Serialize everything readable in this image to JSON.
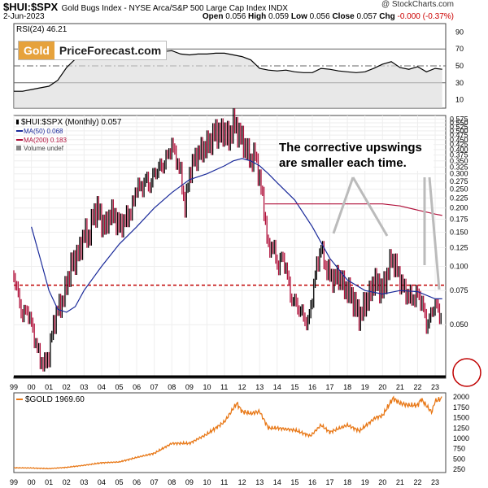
{
  "header": {
    "symbol": "$HUI:$SPX",
    "description": "Gold Bugs Index - NYSE Arca/S&P 500 Large Cap Index INDX",
    "date": "2-Jun-2023",
    "open_label": "Open",
    "open": "0.056",
    "high_label": "High",
    "high": "0.059",
    "low_label": "Low",
    "low": "0.056",
    "close_label": "Close",
    "close": "0.057",
    "chg_label": "Chg",
    "chg": "-0.000 (-0.37%)",
    "copyright": "@ StockCharts.com"
  },
  "logo": {
    "gold": "Gold",
    "rest": "PriceForecast.com"
  },
  "annotation": "The corrective upswings are smaller each time.",
  "colors": {
    "price": "#000000",
    "ma50": "#1a2a9a",
    "ma200": "#b0103a",
    "gold": "#e87817",
    "dashed": "#c00000",
    "callout_circle": "#c00000"
  },
  "chart_data": [
    {
      "type": "line",
      "panel": "rsi",
      "legend": "RSI(24) 46.21",
      "ylim": [
        0,
        100
      ],
      "yticks": [
        10,
        30,
        50,
        70,
        90
      ],
      "levels": [
        30,
        50,
        70
      ],
      "series": [
        {
          "name": "RSI(24)",
          "x": [
            1999.0,
            1999.5,
            2000.0,
            2000.5,
            2001.0,
            2001.5,
            2002.0,
            2002.5,
            2003.0,
            2003.5,
            2004.0,
            2004.5,
            2005.0,
            2005.5,
            2006.0,
            2006.5,
            2007.0,
            2007.5,
            2008.0,
            2008.5,
            2009.0,
            2009.5,
            2010.0,
            2010.5,
            2011.0,
            2011.5,
            2012.0,
            2012.5,
            2013.0,
            2013.5,
            2014.0,
            2014.5,
            2015.0,
            2015.5,
            2016.0,
            2016.5,
            2017.0,
            2017.5,
            2018.0,
            2018.5,
            2019.0,
            2019.5,
            2020.0,
            2020.5,
            2021.0,
            2021.5,
            2022.0,
            2022.5,
            2023.0,
            2023.4
          ],
          "values": [
            20,
            20,
            22,
            24,
            26,
            33,
            48,
            58,
            62,
            60,
            63,
            60,
            61,
            62,
            66,
            64,
            66,
            67,
            68,
            64,
            63,
            64,
            64,
            65,
            65,
            63,
            61,
            57,
            47,
            45,
            44,
            45,
            43,
            42,
            42,
            47,
            46,
            44,
            43,
            42,
            43,
            47,
            52,
            55,
            48,
            46,
            49,
            43,
            47,
            46
          ]
        }
      ]
    },
    {
      "type": "line",
      "panel": "ratio",
      "legend": [
        "$HUI:$SPX (Monthly) 0.057",
        "MA(50) 0.068",
        "MA(200) 0.183",
        "Volume undef"
      ],
      "yscale": "log",
      "yticks": [
        "0.050",
        "0.075",
        "0.100",
        "0.125",
        "0.150",
        "0.175",
        "0.200",
        "0.225",
        "0.250",
        "0.275",
        "0.300",
        "0.325",
        "0.350",
        "0.375",
        "0.400",
        "0.425",
        "0.450",
        "0.475",
        "0.500",
        "0.525",
        "0.550",
        "0.575"
      ],
      "xticks": [
        "99",
        "00",
        "01",
        "02",
        "03",
        "04",
        "05",
        "06",
        "07",
        "08",
        "09",
        "10",
        "11",
        "12",
        "13",
        "14",
        "15",
        "16",
        "17",
        "18",
        "19",
        "20",
        "21",
        "22",
        "23"
      ],
      "reference_line": 0.08,
      "series": [
        {
          "name": "$HUI:$SPX",
          "x": [
            1999.0,
            1999.25,
            1999.5,
            1999.75,
            2000.0,
            2000.25,
            2000.5,
            2000.75,
            2001.0,
            2001.25,
            2001.5,
            2001.75,
            2002.0,
            2002.25,
            2002.5,
            2002.75,
            2003.0,
            2003.25,
            2003.5,
            2003.75,
            2004.0,
            2004.25,
            2004.5,
            2004.75,
            2005.0,
            2005.25,
            2005.5,
            2005.75,
            2006.0,
            2006.25,
            2006.5,
            2006.75,
            2007.0,
            2007.25,
            2007.5,
            2007.75,
            2008.0,
            2008.25,
            2008.5,
            2008.75,
            2009.0,
            2009.25,
            2009.5,
            2009.75,
            2010.0,
            2010.25,
            2010.5,
            2010.75,
            2011.0,
            2011.25,
            2011.5,
            2011.75,
            2012.0,
            2012.25,
            2012.5,
            2012.75,
            2013.0,
            2013.25,
            2013.5,
            2013.75,
            2014.0,
            2014.25,
            2014.5,
            2014.75,
            2015.0,
            2015.25,
            2015.5,
            2015.75,
            2016.0,
            2016.25,
            2016.5,
            2016.75,
            2017.0,
            2017.25,
            2017.5,
            2017.75,
            2018.0,
            2018.25,
            2018.5,
            2018.75,
            2019.0,
            2019.25,
            2019.5,
            2019.75,
            2020.0,
            2020.25,
            2020.5,
            2020.75,
            2021.0,
            2021.25,
            2021.5,
            2021.75,
            2022.0,
            2022.25,
            2022.5,
            2022.75,
            2023.0,
            2023.25,
            2023.4
          ],
          "values": [
            0.09,
            0.07,
            0.055,
            0.06,
            0.05,
            0.04,
            0.033,
            0.031,
            0.035,
            0.05,
            0.06,
            0.065,
            0.08,
            0.1,
            0.11,
            0.12,
            0.15,
            0.14,
            0.18,
            0.2,
            0.17,
            0.16,
            0.19,
            0.18,
            0.16,
            0.17,
            0.18,
            0.2,
            0.26,
            0.25,
            0.28,
            0.26,
            0.3,
            0.32,
            0.33,
            0.37,
            0.42,
            0.36,
            0.3,
            0.2,
            0.3,
            0.35,
            0.38,
            0.4,
            0.42,
            0.45,
            0.5,
            0.48,
            0.5,
            0.45,
            0.55,
            0.5,
            0.45,
            0.4,
            0.35,
            0.38,
            0.28,
            0.2,
            0.12,
            0.13,
            0.1,
            0.11,
            0.1,
            0.07,
            0.065,
            0.06,
            0.055,
            0.05,
            0.07,
            0.1,
            0.125,
            0.1,
            0.09,
            0.085,
            0.09,
            0.08,
            0.075,
            0.07,
            0.06,
            0.055,
            0.065,
            0.07,
            0.085,
            0.08,
            0.075,
            0.09,
            0.11,
            0.1,
            0.085,
            0.075,
            0.07,
            0.068,
            0.072,
            0.065,
            0.05,
            0.055,
            0.065,
            0.055,
            0.057
          ]
        },
        {
          "name": "MA(50)",
          "x": [
            2000.0,
            2000.5,
            2001.0,
            2001.5,
            2002.0,
            2002.5,
            2003.0,
            2004.0,
            2005.0,
            2006.0,
            2007.0,
            2008.0,
            2009.0,
            2010.0,
            2011.0,
            2011.5,
            2012.0,
            2012.5,
            2013.0,
            2013.5,
            2014.0,
            2015.0,
            2016.0,
            2017.0,
            2018.0,
            2019.0,
            2020.0,
            2021.0,
            2022.0,
            2023.0,
            2023.4
          ],
          "values": [
            0.16,
            0.11,
            0.075,
            0.06,
            0.058,
            0.062,
            0.075,
            0.1,
            0.13,
            0.16,
            0.2,
            0.24,
            0.28,
            0.3,
            0.33,
            0.35,
            0.36,
            0.35,
            0.33,
            0.3,
            0.27,
            0.22,
            0.16,
            0.11,
            0.085,
            0.075,
            0.072,
            0.075,
            0.074,
            0.068,
            0.068
          ]
        },
        {
          "name": "MA(200)",
          "x": [
            2013.3,
            2014.0,
            2015.0,
            2016.0,
            2017.0,
            2018.0,
            2019.0,
            2020.0,
            2021.0,
            2022.0,
            2023.0,
            2023.4
          ],
          "values": [
            0.21,
            0.21,
            0.21,
            0.21,
            0.21,
            0.21,
            0.21,
            0.21,
            0.205,
            0.195,
            0.186,
            0.183
          ]
        }
      ]
    },
    {
      "type": "line",
      "panel": "gold",
      "legend": "$GOLD 1969.60",
      "ylim": [
        175,
        2100
      ],
      "yticks": [
        250,
        500,
        750,
        1000,
        1250,
        1500,
        1750,
        2000
      ],
      "series": [
        {
          "name": "$GOLD",
          "x": [
            1999.0,
            2000.0,
            2001.0,
            2002.0,
            2003.0,
            2004.0,
            2005.0,
            2006.0,
            2007.0,
            2008.0,
            2009.0,
            2010.0,
            2011.0,
            2011.7,
            2012.0,
            2012.5,
            2013.0,
            2013.5,
            2014.0,
            2015.0,
            2015.9,
            2016.5,
            2017.0,
            2018.0,
            2018.7,
            2019.0,
            2019.6,
            2020.0,
            2020.6,
            2021.0,
            2021.5,
            2022.0,
            2022.2,
            2022.8,
            2023.0,
            2023.4
          ],
          "values": [
            290,
            285,
            270,
            300,
            350,
            410,
            430,
            540,
            640,
            880,
            880,
            1100,
            1400,
            1850,
            1650,
            1600,
            1650,
            1250,
            1250,
            1200,
            1060,
            1320,
            1150,
            1320,
            1180,
            1290,
            1500,
            1550,
            1970,
            1850,
            1800,
            1800,
            1950,
            1630,
            1900,
            1970
          ]
        }
      ]
    }
  ]
}
